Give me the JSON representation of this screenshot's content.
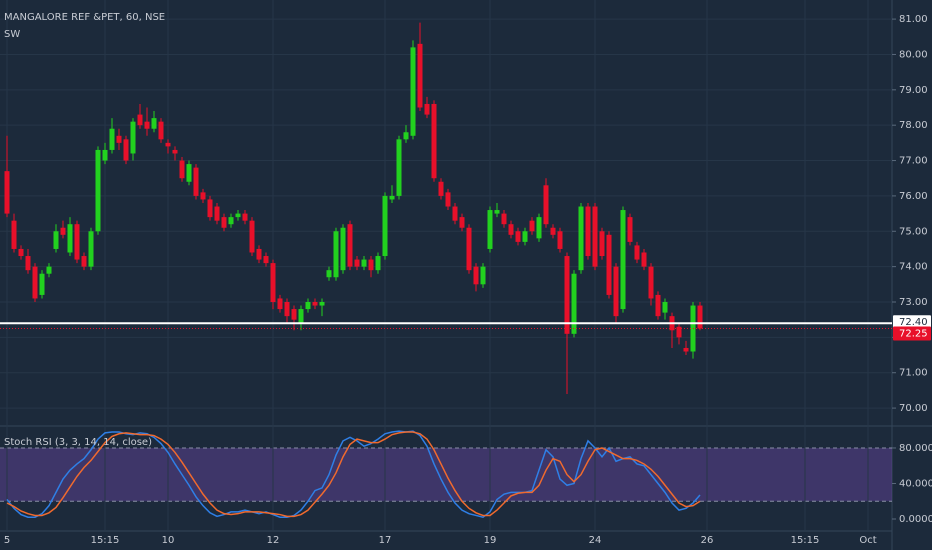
{
  "chart_data": [
    {
      "type": "candlestick",
      "title": "MANGALORE REF &PET, 60, NSE",
      "subtitle": "SW",
      "up_color": "#22d11f",
      "down_color": "#e8102a",
      "ylim": [
        69.55,
        81.54
      ],
      "yticks": [
        {
          "value": 70,
          "label": "70.00"
        },
        {
          "value": 71,
          "label": "71.00"
        },
        {
          "value": 72,
          "label": "72.00"
        },
        {
          "value": 73,
          "label": "73.00"
        },
        {
          "value": 74,
          "label": "74.00"
        },
        {
          "value": 75,
          "label": "75.00"
        },
        {
          "value": 76,
          "label": "76.00"
        },
        {
          "value": 77,
          "label": "77.00"
        },
        {
          "value": 78,
          "label": "78.00"
        },
        {
          "value": 79,
          "label": "79.00"
        },
        {
          "value": 80,
          "label": "80.00"
        },
        {
          "value": 81,
          "label": "81.00"
        }
      ],
      "grid": true,
      "hlines": [
        {
          "value": 72.4,
          "label": "72.40",
          "color": "#ffffff"
        },
        {
          "value": 72.25,
          "label": "72.25",
          "color": "#e8102a"
        }
      ],
      "open": [
        76.7,
        75.3,
        74.5,
        74.3,
        74.0,
        73.2,
        73.8,
        74.5,
        75.1,
        74.4,
        75.2,
        74.3,
        74.0,
        75.0,
        77.0,
        77.3,
        77.7,
        77.6,
        77.2,
        78.3,
        78.1,
        77.9,
        78.1,
        77.5,
        77.3,
        77.0,
        76.4,
        76.8,
        76.1,
        75.9,
        75.7,
        75.4,
        75.2,
        75.4,
        75.5,
        75.3,
        74.5,
        74.3,
        74.1,
        73.1,
        73.0,
        72.8,
        72.4,
        72.8,
        73.0,
        72.9,
        73.7,
        73.7,
        73.9,
        75.2,
        74.2,
        74.0,
        74.2,
        73.9,
        74.3,
        75.9,
        76.0,
        77.6,
        77.7,
        80.3,
        78.6,
        78.6,
        76.4,
        76.1,
        75.7,
        75.4,
        75.1,
        74.0,
        73.5,
        74.5,
        75.5,
        75.5,
        75.2,
        75.0,
        74.7,
        75.3,
        74.8,
        76.3,
        75.1,
        75.0,
        74.3,
        72.1,
        73.9,
        75.7,
        75.7,
        75.0,
        74.9,
        74.0,
        72.8,
        75.4,
        74.6,
        74.4,
        74.0,
        73.2,
        72.7,
        72.6,
        72.3,
        71.7,
        71.6,
        72.9,
        null,
        null,
        null,
        null,
        null,
        null,
        null,
        null,
        null,
        null,
        null,
        null,
        null,
        null,
        null,
        null,
        null,
        null,
        null,
        null,
        null,
        null,
        null,
        null
      ],
      "high": [
        77.7,
        75.5,
        74.6,
        74.5,
        74.1,
        73.9,
        74.1,
        75.2,
        75.3,
        75.4,
        75.3,
        74.4,
        75.1,
        77.4,
        77.5,
        78.2,
        77.9,
        77.7,
        78.2,
        78.6,
        78.5,
        78.4,
        78.2,
        77.6,
        77.4,
        77.1,
        77.0,
        76.9,
        76.2,
        76.0,
        75.8,
        75.5,
        75.5,
        75.6,
        75.6,
        75.4,
        74.6,
        74.4,
        74.2,
        73.2,
        73.1,
        72.9,
        72.9,
        73.1,
        73.1,
        73.1,
        74.0,
        75.1,
        75.2,
        75.3,
        74.3,
        74.3,
        74.3,
        74.4,
        76.1,
        76.3,
        77.7,
        78.0,
        80.4,
        80.9,
        78.8,
        78.7,
        76.5,
        76.2,
        75.8,
        75.5,
        75.2,
        74.1,
        74.1,
        75.7,
        75.8,
        75.6,
        75.3,
        75.1,
        75.1,
        75.4,
        75.5,
        76.5,
        75.2,
        75.1,
        74.4,
        73.9,
        75.8,
        75.8,
        75.8,
        75.1,
        75.0,
        74.1,
        75.7,
        75.5,
        74.7,
        74.5,
        74.1,
        73.3,
        73.1,
        72.7,
        72.4,
        71.9,
        73.0,
        73.0,
        null,
        null,
        null,
        null,
        null,
        null,
        null,
        null,
        null,
        null,
        null,
        null,
        null,
        null,
        null,
        null,
        null,
        null,
        null,
        null,
        null,
        null,
        null,
        null
      ],
      "low": [
        75.4,
        74.4,
        74.2,
        73.8,
        73.0,
        73.1,
        73.7,
        74.4,
        74.8,
        74.3,
        74.1,
        73.9,
        73.9,
        74.9,
        76.9,
        77.2,
        77.3,
        76.9,
        77.0,
        77.9,
        77.7,
        77.8,
        77.5,
        77.2,
        77.0,
        76.4,
        76.3,
        75.9,
        75.8,
        75.3,
        75.2,
        75.0,
        75.1,
        75.3,
        75.2,
        74.3,
        74.1,
        74.0,
        72.8,
        72.7,
        72.4,
        72.2,
        72.2,
        72.7,
        72.8,
        72.6,
        73.6,
        73.6,
        73.8,
        73.9,
        73.9,
        73.9,
        73.7,
        73.8,
        74.2,
        75.8,
        75.9,
        77.5,
        77.6,
        78.4,
        78.2,
        76.4,
        75.9,
        75.6,
        75.2,
        75.0,
        73.8,
        73.3,
        73.4,
        74.4,
        75.4,
        75.1,
        74.8,
        74.6,
        74.6,
        74.9,
        74.7,
        75.1,
        74.8,
        74.4,
        70.4,
        72.0,
        73.8,
        74.2,
        73.9,
        74.2,
        73.1,
        72.4,
        72.7,
        74.6,
        74.1,
        73.9,
        72.9,
        72.5,
        72.5,
        71.7,
        71.8,
        71.5,
        71.4,
        72.2,
        null,
        null,
        null,
        null,
        null,
        null,
        null,
        null,
        null,
        null,
        null,
        null,
        null,
        null,
        null,
        null,
        null,
        null,
        null,
        null,
        null,
        null,
        null,
        null
      ],
      "close": [
        75.5,
        74.5,
        74.3,
        73.9,
        73.1,
        73.8,
        74.0,
        75.0,
        74.9,
        75.2,
        74.2,
        74.0,
        75.0,
        77.3,
        77.3,
        77.9,
        77.5,
        77.0,
        78.1,
        78.0,
        77.9,
        78.2,
        77.6,
        77.4,
        77.2,
        76.5,
        76.9,
        76.0,
        75.9,
        75.4,
        75.3,
        75.1,
        75.4,
        75.5,
        75.3,
        74.4,
        74.2,
        74.1,
        73.0,
        72.8,
        72.6,
        72.5,
        72.8,
        73.0,
        72.9,
        73.0,
        73.9,
        75.0,
        75.1,
        74.0,
        74.0,
        74.2,
        73.9,
        74.3,
        76.0,
        76.0,
        77.6,
        77.8,
        80.2,
        78.5,
        78.3,
        76.5,
        76.0,
        75.7,
        75.3,
        75.1,
        73.9,
        73.5,
        74.0,
        75.6,
        75.6,
        75.2,
        74.9,
        74.7,
        75.0,
        75.0,
        75.4,
        75.2,
        74.9,
        74.5,
        72.1,
        73.8,
        75.7,
        74.3,
        74.0,
        74.3,
        73.2,
        72.6,
        75.6,
        74.7,
        74.2,
        74.0,
        73.1,
        72.6,
        73.0,
        72.2,
        72.0,
        71.6,
        72.9,
        72.25,
        null,
        null,
        null,
        null,
        null,
        null,
        null,
        null,
        null,
        null,
        null,
        null,
        null,
        null,
        null,
        null,
        null,
        null,
        null,
        null,
        null,
        null,
        null,
        null
      ]
    },
    {
      "type": "line",
      "title": "Stoch RSI (3, 3, 14, 14, close)",
      "ylim": [
        -12.4,
        102.5
      ],
      "yticks": [
        {
          "value": 0,
          "label": "0.0000"
        },
        {
          "value": 40,
          "label": "40.0000"
        },
        {
          "value": 80,
          "label": "80.0000"
        }
      ],
      "bands": [
        20,
        80
      ],
      "band_color": "#5b3f8f",
      "categories": [
        "5",
        null,
        null,
        null,
        null,
        null,
        null,
        null,
        null,
        null,
        null,
        null,
        null,
        null,
        "15:15",
        null,
        null,
        null,
        null,
        null,
        null,
        null,
        null,
        "10",
        null,
        null,
        null,
        null,
        null,
        null,
        null,
        null,
        null,
        null,
        null,
        null,
        null,
        null,
        "12",
        null,
        null,
        null,
        null,
        null,
        null,
        null,
        null,
        null,
        null,
        null,
        null,
        null,
        null,
        null,
        "17",
        null,
        null,
        null,
        null,
        null,
        null,
        null,
        null,
        null,
        null,
        null,
        null,
        null,
        null,
        "19",
        null,
        null,
        null,
        null,
        null,
        null,
        null,
        null,
        null,
        null,
        null,
        null,
        null,
        null,
        "24",
        null,
        null,
        null,
        null,
        null,
        null,
        null,
        null,
        null,
        null,
        null,
        null,
        null,
        null,
        null,
        "26",
        null,
        null,
        null,
        null,
        null,
        null,
        null,
        null,
        null,
        null,
        null,
        null,
        null,
        "15:15",
        null,
        null,
        null,
        null,
        null,
        null,
        null,
        null,
        "Oct"
      ],
      "series": [
        {
          "color": "#2f7fe6",
          "values": [
            22,
            12,
            5,
            2,
            2,
            6,
            15,
            30,
            45,
            55,
            62,
            68,
            78,
            90,
            97,
            98,
            98,
            96,
            95,
            97,
            96,
            92,
            85,
            75,
            62,
            50,
            38,
            25,
            15,
            7,
            3,
            5,
            8,
            8,
            10,
            8,
            6,
            8,
            5,
            2,
            2,
            4,
            10,
            20,
            32,
            35,
            50,
            72,
            88,
            92,
            88,
            82,
            85,
            90,
            96,
            98,
            99,
            98,
            99,
            94,
            82,
            62,
            45,
            30,
            18,
            10,
            6,
            4,
            2,
            8,
            22,
            28,
            30,
            30,
            30,
            32,
            55,
            78,
            70,
            45,
            38,
            40,
            68,
            88,
            80,
            70,
            80,
            65,
            68,
            70,
            62,
            60,
            50,
            40,
            30,
            18,
            10,
            12,
            18,
            27,
            null,
            null,
            null,
            null,
            null,
            null,
            null,
            null,
            null,
            null,
            null,
            null,
            null,
            null,
            null,
            null,
            null,
            null,
            null,
            null,
            null,
            null,
            null,
            null
          ]
        },
        {
          "color": "#f06a2e",
          "values": [
            18,
            14,
            9,
            6,
            4,
            4,
            7,
            13,
            24,
            36,
            48,
            58,
            66,
            76,
            86,
            93,
            96,
            97,
            96,
            95,
            95,
            94,
            90,
            84,
            75,
            64,
            52,
            40,
            28,
            18,
            10,
            6,
            5,
            6,
            8,
            8,
            8,
            7,
            6,
            5,
            3,
            3,
            5,
            10,
            19,
            28,
            38,
            52,
            70,
            84,
            90,
            88,
            86,
            86,
            90,
            95,
            97,
            98,
            98,
            96,
            90,
            78,
            62,
            46,
            32,
            20,
            12,
            7,
            4,
            4,
            10,
            18,
            26,
            29,
            30,
            30,
            38,
            55,
            68,
            65,
            50,
            42,
            50,
            65,
            78,
            80,
            76,
            72,
            68,
            68,
            66,
            62,
            56,
            48,
            38,
            28,
            18,
            14,
            15,
            20,
            null,
            null,
            null,
            null,
            null,
            null,
            null,
            null,
            null,
            null,
            null,
            null,
            null,
            null,
            null,
            null,
            null,
            null,
            null,
            null,
            null,
            null,
            null,
            null
          ]
        }
      ]
    }
  ]
}
